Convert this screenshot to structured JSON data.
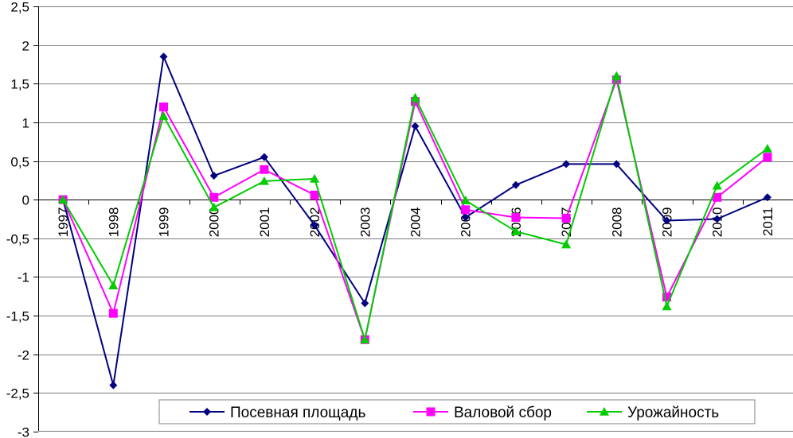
{
  "chart_data": {
    "type": "line",
    "title": "",
    "xlabel": "",
    "ylabel": "",
    "ylim": [
      -3,
      2.5
    ],
    "yticks": [
      2.5,
      2,
      1.5,
      1,
      0.5,
      0,
      -0.5,
      -1,
      -1.5,
      -2,
      -2.5,
      -3
    ],
    "ytick_labels": [
      "2,5",
      "2",
      "1,5",
      "1",
      "0,5",
      "0",
      "-0,5",
      "-1",
      "-1,5",
      "-2",
      "-2,5",
      "-3"
    ],
    "categories": [
      "1997",
      "1998",
      "1999",
      "2000",
      "2001",
      "2002",
      "2003",
      "2004",
      "2005",
      "2006",
      "2007",
      "2008",
      "2009",
      "2010",
      "2011"
    ],
    "grid": true,
    "legend": "bottom-center",
    "series": [
      {
        "name": "Посевная площадь",
        "color": "#000080",
        "marker": "diamond",
        "values": [
          0,
          -2.4,
          1.85,
          0.31,
          0.55,
          -0.33,
          -1.34,
          0.95,
          -0.23,
          0.19,
          0.46,
          0.46,
          -0.27,
          -0.25,
          0.03
        ]
      },
      {
        "name": "Валовой сбор",
        "color": "#FF00FF",
        "marker": "square",
        "values": [
          0,
          -1.47,
          1.2,
          0.03,
          0.39,
          0.06,
          -1.81,
          1.27,
          -0.13,
          -0.23,
          -0.24,
          1.55,
          -1.26,
          0.03,
          0.55
        ]
      },
      {
        "name": "Урожайность",
        "color": "#00CC00",
        "marker": "triangle",
        "values": [
          0,
          -1.11,
          1.08,
          -0.1,
          0.24,
          0.27,
          -1.81,
          1.32,
          -0.01,
          -0.41,
          -0.58,
          1.6,
          -1.38,
          0.18,
          0.66
        ]
      }
    ]
  }
}
